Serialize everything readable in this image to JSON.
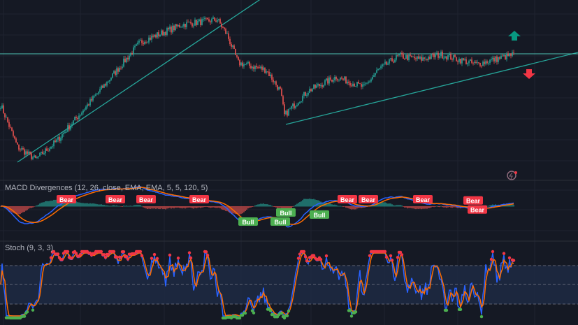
{
  "chart_data": {
    "type": "candlestick",
    "title": "",
    "price_path": [
      [
        0,
        100
      ],
      [
        12,
        40
      ],
      [
        25,
        22
      ],
      [
        40,
        48
      ],
      [
        75,
        130
      ],
      [
        100,
        190
      ],
      [
        130,
        215
      ],
      [
        155,
        222
      ],
      [
        162,
        200
      ],
      [
        170,
        160
      ],
      [
        190,
        150
      ],
      [
        200,
        120
      ],
      [
        203,
        85
      ],
      [
        210,
        100
      ],
      [
        220,
        120
      ],
      [
        240,
        140
      ],
      [
        260,
        125
      ],
      [
        270,
        150
      ],
      [
        285,
        170
      ],
      [
        300,
        165
      ],
      [
        315,
        172
      ],
      [
        340,
        158
      ],
      [
        367,
        172
      ]
    ],
    "trendlines": [
      {
        "from": [
          12,
          18
        ],
        "to": [
          185,
          250
        ],
        "color": "#26a69a"
      },
      {
        "from": [
          204,
          72
        ],
        "to": [
          413,
          175
        ],
        "color": "#26a69a"
      }
    ],
    "horizontal_level": {
      "price": 173,
      "color": "#4fc3b5"
    },
    "signals": [
      {
        "type": "up-arrow",
        "color": "#089981"
      },
      {
        "type": "down-arrow",
        "color": "#f23645"
      }
    ],
    "indicators": [
      {
        "name": "MACD Divergences",
        "params": "(12, 26, close, EMA, EMA, 5, 5, 120, 5)",
        "series": [
          {
            "name": "MACD",
            "color": "#2962ff"
          },
          {
            "name": "Signal",
            "color": "#ff6d00"
          }
        ],
        "labels": [
          {
            "text": "Bear",
            "bar": 47,
            "type": "bear"
          },
          {
            "text": "Bear",
            "bar": 82,
            "type": "bear"
          },
          {
            "text": "Bear",
            "bar": 104,
            "type": "bear"
          },
          {
            "text": "Bear",
            "bar": 142,
            "type": "bear"
          },
          {
            "text": "Bull",
            "bar": 177,
            "type": "bull"
          },
          {
            "text": "Bull",
            "bar": 200,
            "type": "bull"
          },
          {
            "text": "Bull",
            "bar": 204,
            "type": "bull"
          },
          {
            "text": "Bull",
            "bar": 228,
            "type": "bull"
          },
          {
            "text": "Bear",
            "bar": 248,
            "type": "bear"
          },
          {
            "text": "Bear",
            "bar": 263,
            "type": "bear"
          },
          {
            "text": "Bear",
            "bar": 302,
            "type": "bear"
          },
          {
            "text": "Bear",
            "bar": 338,
            "type": "bear"
          },
          {
            "text": "Bear",
            "bar": 341,
            "type": "bear"
          }
        ]
      },
      {
        "name": "Stoch",
        "params": "(9, 3, 3)",
        "levels": [
          80,
          50,
          20
        ],
        "series": [
          {
            "name": "%K",
            "color": "#2962ff"
          },
          {
            "name": "%D",
            "color": "#ff6d00"
          }
        ]
      }
    ]
  },
  "colors": {
    "up": "#26a69a",
    "down": "#ef5350",
    "bear_label": "#f23645",
    "bull_label": "#4caf50"
  }
}
